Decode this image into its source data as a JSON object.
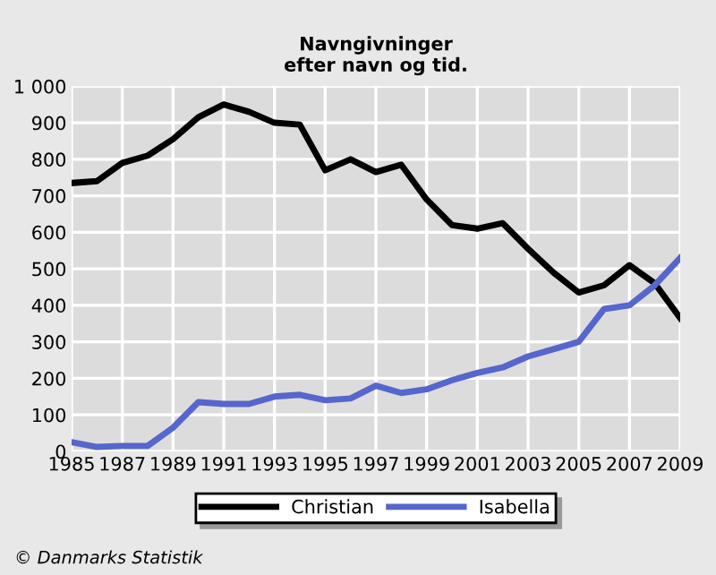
{
  "chart_data": {
    "type": "line",
    "title": "Navngivninger\nefter navn og tid.",
    "x": [
      1985,
      1986,
      1987,
      1988,
      1989,
      1990,
      1991,
      1992,
      1993,
      1994,
      1995,
      1996,
      1997,
      1998,
      1999,
      2000,
      2001,
      2002,
      2003,
      2004,
      2005,
      2006,
      2007,
      2008,
      2009
    ],
    "series": [
      {
        "name": "Christian",
        "color": "#000000",
        "values": [
          735,
          740,
          790,
          810,
          855,
          915,
          950,
          930,
          900,
          895,
          770,
          800,
          765,
          785,
          690,
          620,
          610,
          625,
          555,
          490,
          435,
          455,
          510,
          460,
          365
        ]
      },
      {
        "name": "Isabella",
        "color": "#5566cc",
        "values": [
          25,
          12,
          15,
          15,
          65,
          135,
          130,
          130,
          150,
          155,
          140,
          145,
          180,
          160,
          170,
          195,
          215,
          230,
          260,
          280,
          300,
          390,
          400,
          455,
          530
        ]
      }
    ],
    "xlim": [
      1985,
      2009
    ],
    "xticks": [
      1985,
      1987,
      1989,
      1991,
      1993,
      1995,
      1997,
      1999,
      2001,
      2003,
      2005,
      2007,
      2009
    ],
    "ylim": [
      0,
      1000
    ],
    "yticks": [
      0,
      100,
      200,
      300,
      400,
      500,
      600,
      700,
      800,
      900,
      {
        "value": 1000,
        "label": "1 000"
      }
    ],
    "grid": true,
    "legend": "bottom",
    "marker": "none",
    "line_style": "solid",
    "annotations": [
      "© Danmarks Statistik"
    ]
  }
}
